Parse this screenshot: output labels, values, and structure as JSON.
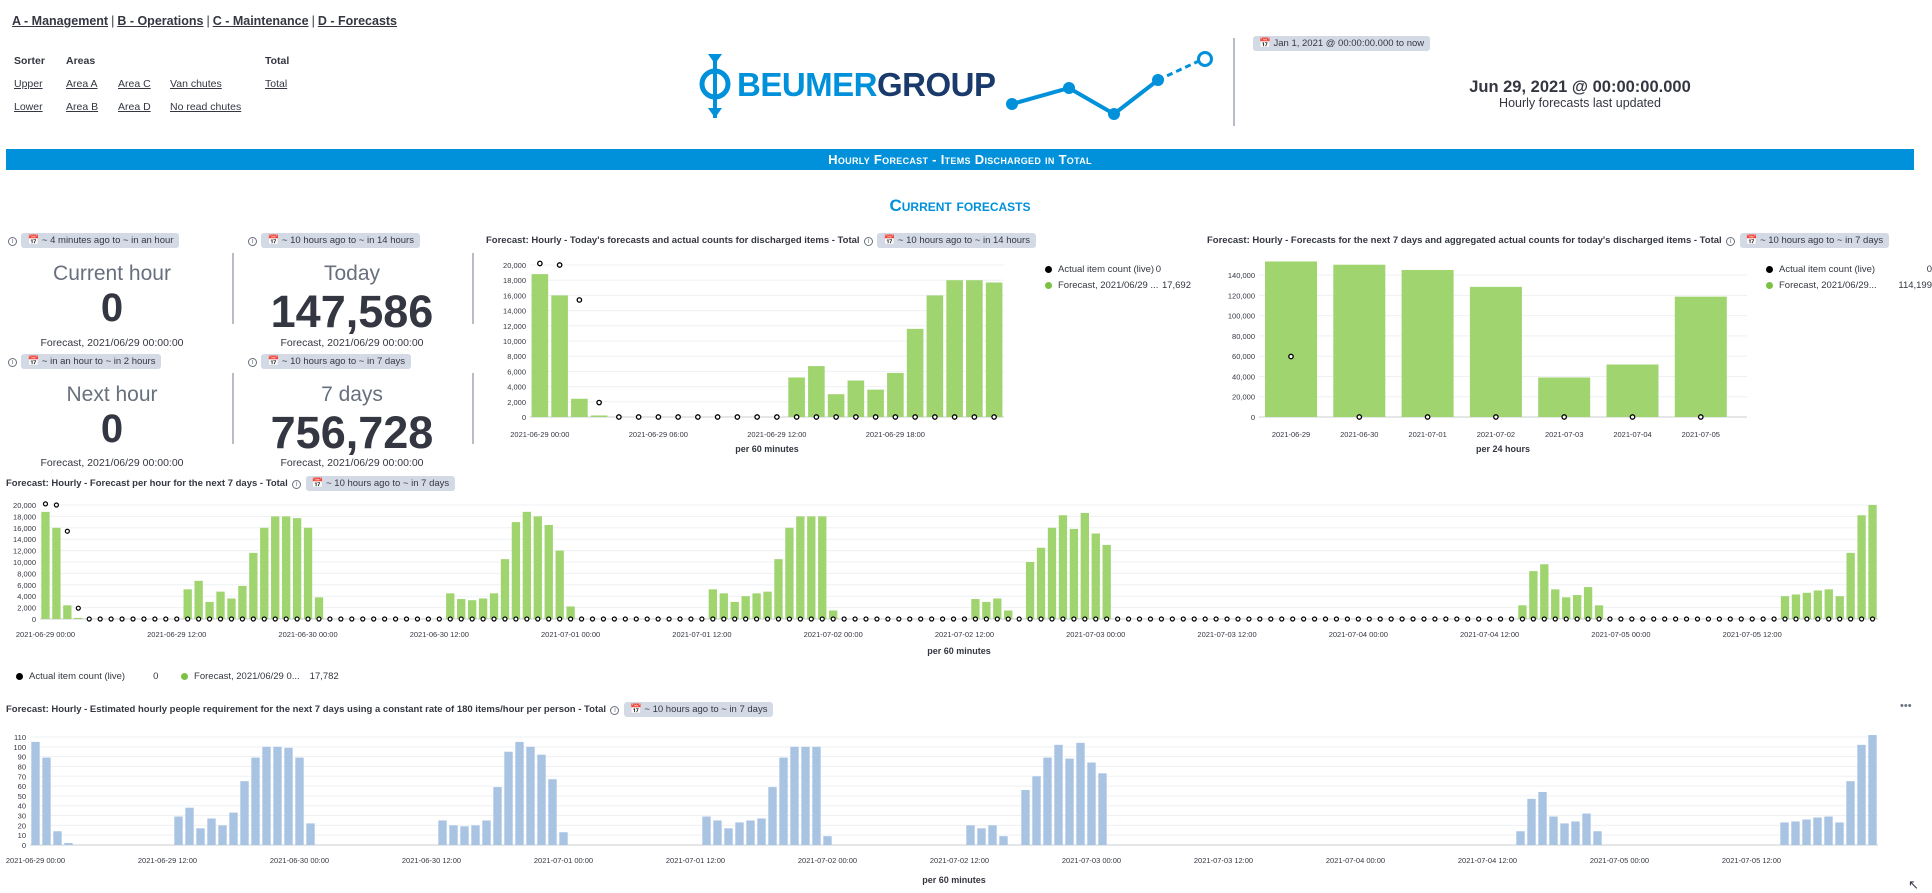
{
  "nav": {
    "links": [
      "A - Management",
      "B - Operations",
      "C - Maintenance",
      "D - Forecasts"
    ],
    "separator": "|"
  },
  "filters": {
    "headers": {
      "sorter": "Sorter",
      "areas": "Areas",
      "total": "Total"
    },
    "sorter": [
      "Upper",
      "Lower"
    ],
    "areas_col1": [
      "Area A",
      "Area B"
    ],
    "areas_col2": [
      "Area C",
      "Area D"
    ],
    "areas_col3": [
      "Van chutes",
      "No read chutes"
    ],
    "total": [
      "Total"
    ]
  },
  "logo": {
    "beumer": "BEUMER",
    "group": "GROUP"
  },
  "header_right": {
    "range_pill": "Jan 1, 2021 @ 00:00:00.000 to now",
    "date": "Jun 29, 2021 @ 00:00:00.000",
    "subtitle": "Hourly forecasts last updated"
  },
  "banner": "Hourly Forecast - Items Discharged in Total",
  "section_title": "Current forecasts",
  "metrics": [
    {
      "pill": "~ 4 minutes ago to ~ in an hour",
      "label": "Current hour",
      "value": "0",
      "sub": "Forecast, 2021/06/29 00:00:00"
    },
    {
      "pill": "~ 10 hours ago to ~ in 14 hours",
      "label": "Today",
      "value": "147,586",
      "sub": "Forecast, 2021/06/29 00:00:00"
    },
    {
      "pill": "~ in an hour to ~ in 2 hours",
      "label": "Next hour",
      "value": "0",
      "sub": "Forecast, 2021/06/29 00:00:00"
    },
    {
      "pill": "~ 10 hours ago to ~ in 7 days",
      "label": "7 days",
      "value": "756,728",
      "sub": "Forecast, 2021/06/29 00:00:00"
    }
  ],
  "colors": {
    "accent": "#0091da",
    "forecast": "#9fd46f",
    "people": "#a9c3e3",
    "actual": "#000000"
  },
  "panels": {
    "today": {
      "title": "Forecast: Hourly - Today's forecasts and actual counts for discharged items - Total",
      "pill": "~ 10 hours ago to ~ in 14 hours",
      "xlabel": "per 60 minutes",
      "legend": [
        {
          "name": "Actual item count (live)",
          "value": "0"
        },
        {
          "name": "Forecast, 2021/06/29 ...",
          "value": "17,692"
        }
      ]
    },
    "next7": {
      "title": "Forecast: Hourly - Forecasts for the next 7 days and aggregated actual counts for today's discharged items - Total",
      "pill": "~ 10 hours ago to ~ in 7 days",
      "xlabel": "per 24 hours",
      "legend": [
        {
          "name": "Actual item count (live)",
          "value": "0"
        },
        {
          "name": "Forecast, 2021/06/29...",
          "value": "114,199"
        }
      ]
    },
    "perhour": {
      "title": "Forecast: Hourly - Forecast per hour for the next 7 days - Total",
      "pill": "~ 10 hours ago to ~ in 7 days",
      "xlabel": "per 60 minutes",
      "legend": [
        {
          "name": "Actual item count (live)",
          "value": "0"
        },
        {
          "name": "Forecast, 2021/06/29 0...",
          "value": "17,782"
        }
      ]
    },
    "people": {
      "title": "Forecast: Hourly - Estimated hourly people requirement for the next 7 days using a constant rate of 180 items/hour per person - Total",
      "pill": "~ 10 hours ago to ~ in 7 days",
      "xlabel": "per 60 minutes"
    }
  },
  "chart_data": [
    {
      "type": "bar",
      "name": "today",
      "x_ticks": [
        "2021-06-29 00:00",
        "2021-06-29 06:00",
        "2021-06-29 12:00",
        "2021-06-29 18:00"
      ],
      "ylim": [
        0,
        20000
      ],
      "y_ticks": [
        "0",
        "2,000",
        "4,000",
        "6,000",
        "8,000",
        "10,000",
        "12,000",
        "14,000",
        "16,000",
        "18,000",
        "20,000"
      ],
      "xlabel": "per 60 minutes",
      "series": [
        {
          "name": "Forecast, 2021/06/29 ...",
          "values": [
            18800,
            16000,
            2400,
            200,
            0,
            0,
            0,
            0,
            0,
            0,
            0,
            0,
            0,
            5200,
            6700,
            3000,
            4800,
            3600,
            5800,
            11600,
            16000,
            18000,
            18000,
            17700
          ]
        },
        {
          "name": "Actual item count (live)",
          "values": [
            20200,
            20000,
            15400,
            1900,
            0,
            0,
            0,
            0,
            0,
            0,
            0,
            0,
            0,
            0,
            0,
            0,
            0,
            0,
            0,
            0,
            0,
            0,
            0,
            0
          ]
        }
      ]
    },
    {
      "type": "bar",
      "name": "next7",
      "categories": [
        "2021-06-29",
        "2021-06-30",
        "2021-07-01",
        "2021-07-02",
        "2021-07-03",
        "2021-07-04",
        "2021-07-05"
      ],
      "ylim": [
        0,
        150000
      ],
      "y_ticks": [
        "0",
        "20,000",
        "40,000",
        "60,000",
        "80,000",
        "100,000",
        "120,000",
        "140,000"
      ],
      "xlabel": "per 24 hours",
      "series": [
        {
          "name": "Forecast, 2021/06/29...",
          "values": [
            147586,
            144500,
            139500,
            123500,
            37500,
            49800,
            114199
          ]
        },
        {
          "name": "Actual item count (live)",
          "values": [
            57400,
            0,
            0,
            0,
            0,
            0,
            0
          ]
        }
      ]
    },
    {
      "type": "bar",
      "name": "perhour",
      "x_ticks": [
        "2021-06-29 00:00",
        "2021-06-29 12:00",
        "2021-06-30 00:00",
        "2021-06-30 12:00",
        "2021-07-01 00:00",
        "2021-07-01 12:00",
        "2021-07-02 00:00",
        "2021-07-02 12:00",
        "2021-07-03 00:00",
        "2021-07-03 12:00",
        "2021-07-04 00:00",
        "2021-07-04 12:00",
        "2021-07-05 00:00",
        "2021-07-05 12:00"
      ],
      "ylim": [
        0,
        20000
      ],
      "y_ticks": [
        "0",
        "2,000",
        "4,000",
        "6,000",
        "8,000",
        "10,000",
        "12,000",
        "14,000",
        "16,000",
        "18,000",
        "20,000"
      ],
      "xlabel": "per 60 minutes",
      "day_profiles": [
        [
          18800,
          16000,
          2400,
          200,
          0,
          0,
          0,
          0,
          0,
          0,
          0,
          0,
          0,
          5200,
          6700,
          3000,
          4800,
          3600,
          5800,
          11600,
          16000,
          18000,
          18000,
          17700
        ],
        [
          16000,
          3800,
          0,
          0,
          0,
          0,
          0,
          0,
          0,
          0,
          0,
          0,
          0,
          4500,
          3500,
          3300,
          3600,
          4500,
          10500,
          17000,
          18800,
          18000,
          16500,
          12000
        ],
        [
          2200,
          0,
          0,
          0,
          0,
          0,
          0,
          0,
          0,
          0,
          0,
          0,
          0,
          5200,
          4500,
          3000,
          4000,
          4500,
          4800,
          10500,
          16000,
          18000,
          18000,
          18000
        ],
        [
          1500,
          0,
          0,
          0,
          0,
          0,
          0,
          0,
          0,
          0,
          0,
          0,
          0,
          3500,
          3000,
          3600,
          1500,
          0,
          10000,
          12500,
          16000,
          18200,
          15800,
          18600
        ],
        [
          15000,
          13000,
          0,
          0,
          0,
          0,
          0,
          0,
          0,
          0,
          0,
          0,
          0,
          0,
          0,
          0,
          0,
          0,
          0,
          0,
          0,
          0,
          0,
          0
        ],
        [
          0,
          0,
          0,
          0,
          0,
          0,
          0,
          0,
          0,
          0,
          0,
          0,
          0,
          0,
          0,
          2400,
          8400,
          9600,
          5200,
          3800,
          4200,
          5600,
          2400,
          0
        ],
        [
          0,
          0,
          0,
          0,
          0,
          0,
          0,
          0,
          0,
          0,
          0,
          0,
          0,
          0,
          0,
          4000,
          4300,
          4600,
          5000,
          5200,
          4000,
          11600,
          18200,
          20000
        ]
      ]
    },
    {
      "type": "bar",
      "name": "people",
      "ylim": [
        0,
        110
      ],
      "y_ticks": [
        "0",
        "10",
        "20",
        "30",
        "40",
        "50",
        "60",
        "70",
        "80",
        "90",
        "100",
        "110"
      ],
      "x_ticks": [
        "2021-06-29 00:00",
        "2021-06-29 12:00",
        "2021-06-30 00:00",
        "2021-06-30 12:00",
        "2021-07-01 00:00",
        "2021-07-01 12:00",
        "2021-07-02 00:00",
        "2021-07-02 12:00",
        "2021-07-03 00:00",
        "2021-07-03 12:00",
        "2021-07-04 00:00",
        "2021-07-04 12:00",
        "2021-07-05 00:00",
        "2021-07-05 12:00"
      ],
      "xlabel": "per 60 minutes",
      "rate_items_per_person": 180
    }
  ]
}
